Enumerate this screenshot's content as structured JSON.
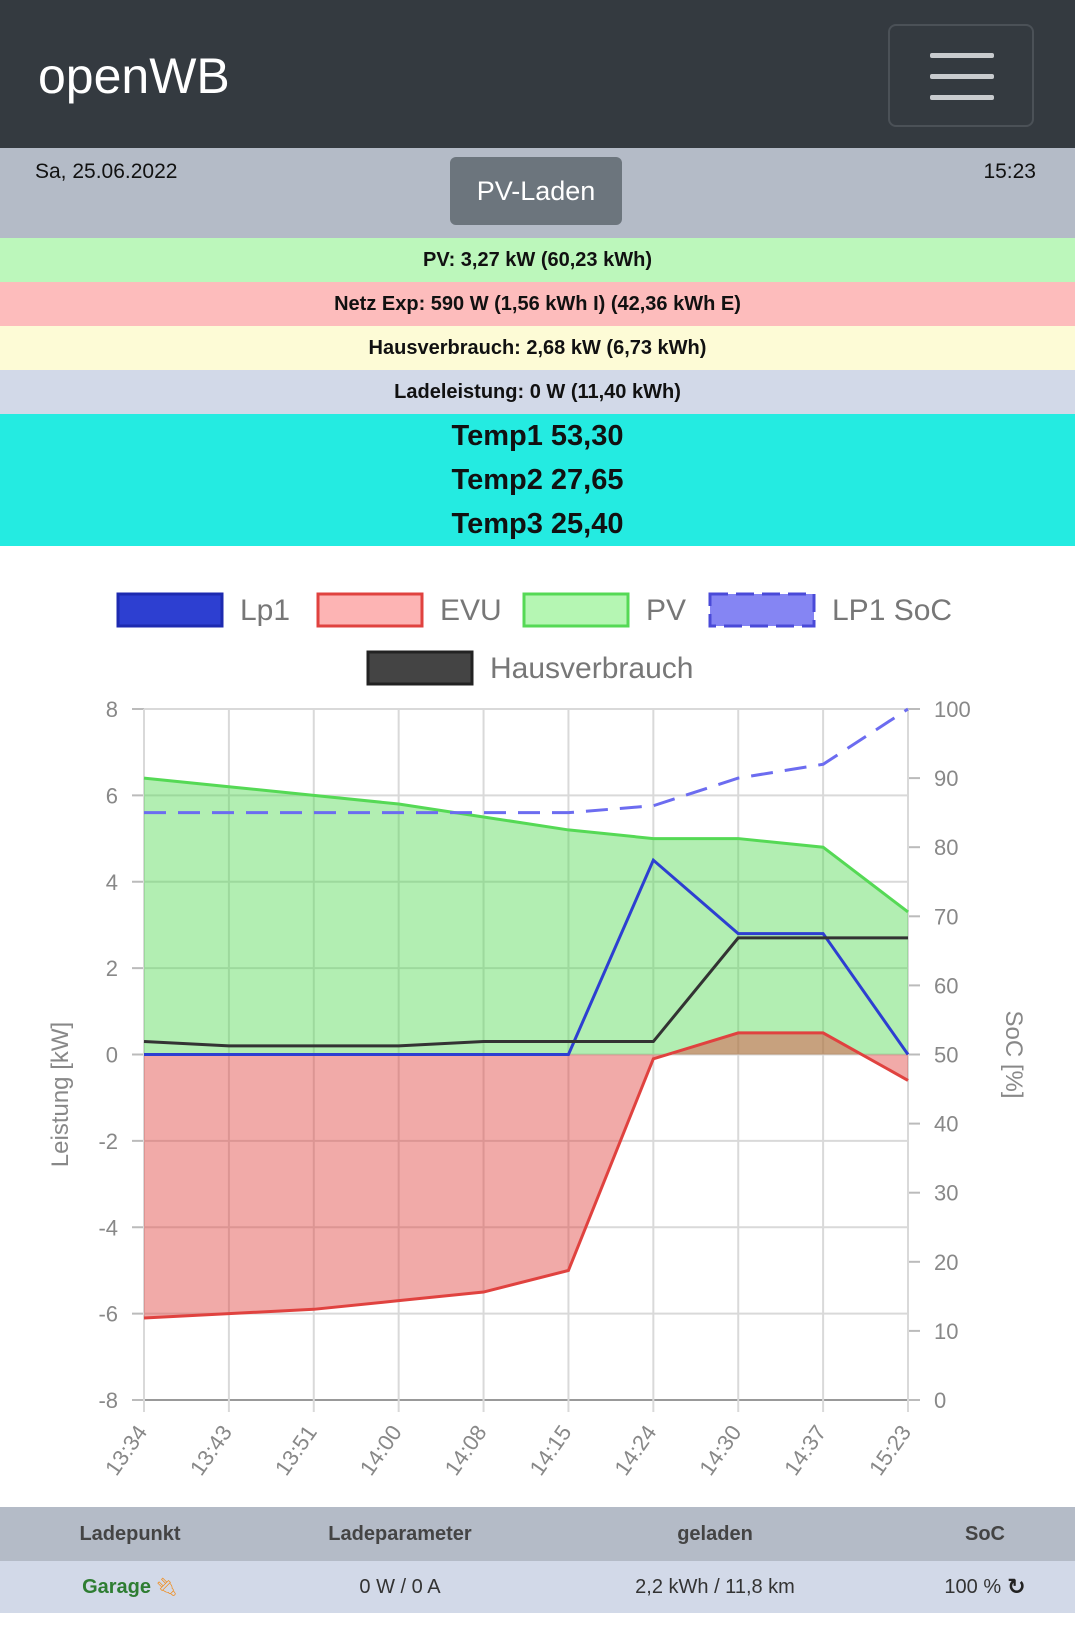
{
  "navbar": {
    "brand": "openWB",
    "menu_icon": "hamburger-icon"
  },
  "status": {
    "date": "Sa, 25.06.2022",
    "mode": "PV-Laden",
    "time": "15:23"
  },
  "summary": {
    "pv": "PV: 3,27 kW (60,23 kWh)",
    "netz": "Netz Exp: 590 W (1,56 kWh I) (42,36 kWh E)",
    "haus": "Hausverbrauch: 2,68 kW (6,73 kWh)",
    "lade": "Ladeleistung: 0 W (11,40 kWh)",
    "temps": [
      "Temp1 53,30",
      "Temp2 27,65",
      "Temp3 25,40"
    ]
  },
  "colors": {
    "lp1": "#2d3fd1",
    "evu": "#e0423f",
    "pv": "#55d955",
    "soc": "#6c6cf0",
    "haus": "#333333"
  },
  "chart_data": {
    "type": "line",
    "x": [
      "13:34",
      "13:43",
      "13:51",
      "14:00",
      "14:08",
      "14:15",
      "14:24",
      "14:30",
      "14:37",
      "15:23"
    ],
    "ylabel": "Leistung [kW]",
    "ylabel_right": "SoC [%]",
    "ylim": [
      -8,
      8
    ],
    "yticks": [
      8,
      6,
      4,
      2,
      0,
      -2,
      -4,
      -6,
      -8
    ],
    "ylim_right": [
      0,
      100
    ],
    "yticks_right": [
      100,
      90,
      80,
      70,
      60,
      50,
      40,
      30,
      20,
      10,
      0
    ],
    "grid": true,
    "legend_position": "top",
    "series": [
      {
        "name": "Lp1",
        "values": [
          0,
          0,
          0,
          0,
          0,
          0,
          4.5,
          2.8,
          2.8,
          0
        ]
      },
      {
        "name": "EVU",
        "values": [
          -6.1,
          -6.0,
          -5.9,
          -5.7,
          -5.5,
          -5.0,
          -0.1,
          0.5,
          0.5,
          -0.6
        ]
      },
      {
        "name": "PV",
        "values": [
          6.4,
          6.2,
          6.0,
          5.8,
          5.5,
          5.2,
          5.0,
          5.0,
          4.8,
          3.3
        ]
      },
      {
        "name": "LP1 SoC",
        "values": [
          85,
          85,
          85,
          85,
          85,
          85,
          86,
          90,
          92,
          100
        ]
      },
      {
        "name": "Hausverbrauch",
        "values": [
          0.3,
          0.2,
          0.2,
          0.2,
          0.3,
          0.3,
          0.3,
          2.7,
          2.7,
          2.7
        ]
      }
    ]
  },
  "table": {
    "headers": [
      "Ladepunkt",
      "Ladeparameter",
      "geladen",
      "SoC"
    ],
    "rows": [
      {
        "ladepunkt": "Garage",
        "parameter": "0 W / 0 A",
        "geladen": "2,2 kWh / 11,8 km",
        "soc": "100 %"
      }
    ]
  }
}
